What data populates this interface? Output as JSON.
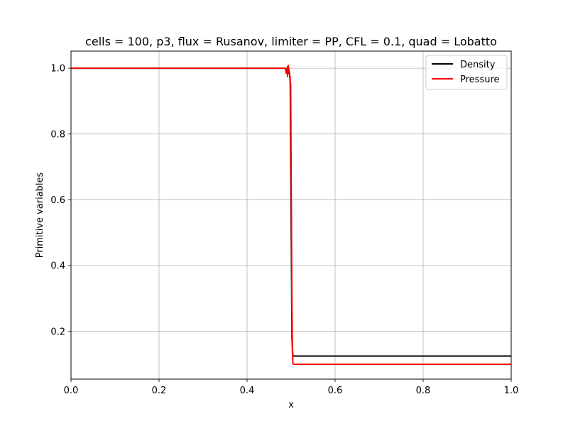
{
  "chart_data": {
    "type": "line",
    "title": "cells = 100, p3, flux = Rusanov, limiter = PP, CFL = 0.1, quad = Lobatto",
    "xlabel": "x",
    "ylabel": "Primitive variables",
    "xlim": [
      0.0,
      1.0
    ],
    "ylim": [
      0.055,
      1.052
    ],
    "x_ticks": [
      0.0,
      0.2,
      0.4,
      0.6,
      0.8,
      1.0
    ],
    "x_tick_labels": [
      "0.0",
      "0.2",
      "0.4",
      "0.6",
      "0.8",
      "1.0"
    ],
    "y_ticks": [
      0.2,
      0.4,
      0.6,
      0.8,
      1.0
    ],
    "y_tick_labels": [
      "0.2",
      "0.4",
      "0.6",
      "0.8",
      "1.0"
    ],
    "grid": true,
    "legend_position": "top-right",
    "series": [
      {
        "name": "Density",
        "color": "#000000",
        "x": [
          0.0,
          0.485,
          0.49,
          0.492,
          0.494,
          0.496,
          0.498,
          0.5,
          0.502,
          0.504,
          0.506,
          1.0
        ],
        "y": [
          1.0,
          1.0,
          0.995,
          1.004,
          0.985,
          0.99,
          0.96,
          0.55,
          0.18,
          0.125,
          0.125,
          0.125
        ]
      },
      {
        "name": "Pressure",
        "color": "#ff0000",
        "x": [
          0.0,
          0.487,
          0.489,
          0.4905,
          0.492,
          0.4935,
          0.495,
          0.497,
          0.499,
          0.5005,
          0.502,
          0.503,
          0.504,
          0.506,
          1.0
        ],
        "y": [
          1.0,
          1.0,
          0.985,
          1.0,
          0.975,
          1.008,
          0.995,
          0.98,
          0.95,
          0.6,
          0.26,
          0.14,
          0.103,
          0.1,
          0.1
        ]
      }
    ]
  }
}
